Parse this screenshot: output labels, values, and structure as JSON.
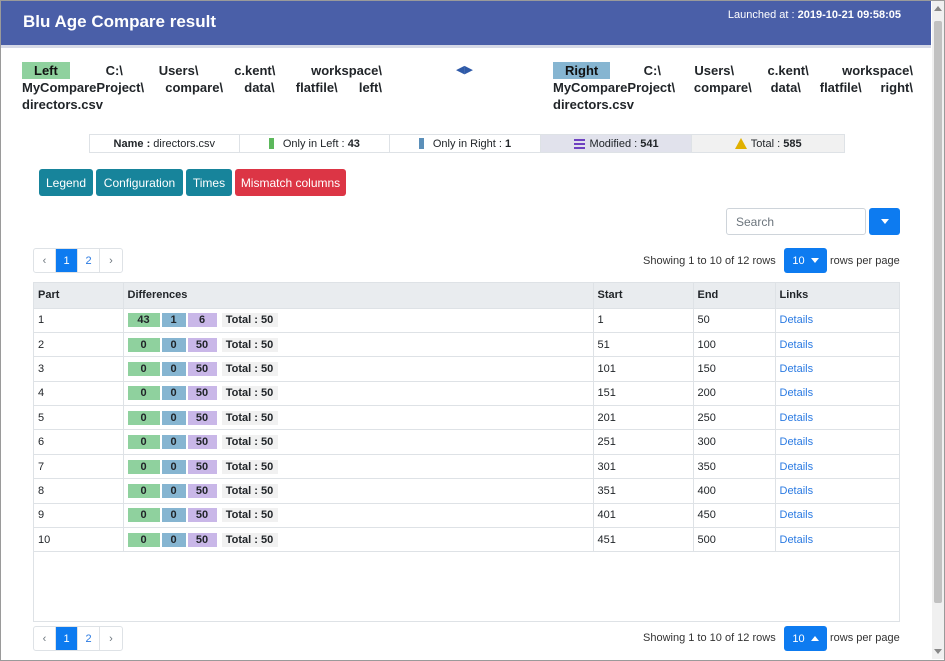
{
  "header": {
    "title": "Blu Age Compare result",
    "launched_label": "Launched at :",
    "launched_value": "2019-10-21 09:58:05"
  },
  "left": {
    "badge": "Left",
    "line1": [
      "C:\\",
      "Users\\",
      "c.kent\\",
      "workspace\\"
    ],
    "line2": [
      "MyCompareProject\\",
      "compare\\",
      "data\\",
      "flatfile\\",
      "left\\"
    ],
    "line3": "directors.csv"
  },
  "right": {
    "badge": "Right",
    "line1": [
      "C:\\",
      "Users\\",
      "c.kent\\",
      "workspace\\"
    ],
    "line2": [
      "MyCompareProject\\",
      "compare\\",
      "data\\",
      "flatfile\\",
      "right\\"
    ],
    "line3": "directors.csv"
  },
  "swap_icon": "◀▶",
  "summary": {
    "name_label": "Name :",
    "name_value": "directors.csv",
    "only_left_label": "Only in Left :",
    "only_left_value": "43",
    "only_right_label": "Only in Right :",
    "only_right_value": "1",
    "modified_label": "Modified :",
    "modified_value": "541",
    "total_label": "Total :",
    "total_value": "585"
  },
  "buttons": {
    "legend": "Legend",
    "configuration": "Configuration",
    "times": "Times",
    "mismatch": "Mismatch columns"
  },
  "search": {
    "placeholder": "Search"
  },
  "pagination": {
    "prev": "‹",
    "pages": [
      "1",
      "2"
    ],
    "next": "›",
    "showing": "Showing 1 to 10 of 12 rows",
    "rows_per_page_value": "10",
    "rows_per_page_label": "rows per page"
  },
  "table": {
    "columns": [
      "Part",
      "Differences",
      "Start",
      "End",
      "Links"
    ],
    "rows": [
      {
        "part": "1",
        "left": "43",
        "right": "1",
        "mod": "6",
        "total": "Total : 50",
        "start": "1",
        "end": "50",
        "link": "Details"
      },
      {
        "part": "2",
        "left": "0",
        "right": "0",
        "mod": "50",
        "total": "Total : 50",
        "start": "51",
        "end": "100",
        "link": "Details"
      },
      {
        "part": "3",
        "left": "0",
        "right": "0",
        "mod": "50",
        "total": "Total : 50",
        "start": "101",
        "end": "150",
        "link": "Details"
      },
      {
        "part": "4",
        "left": "0",
        "right": "0",
        "mod": "50",
        "total": "Total : 50",
        "start": "151",
        "end": "200",
        "link": "Details"
      },
      {
        "part": "5",
        "left": "0",
        "right": "0",
        "mod": "50",
        "total": "Total : 50",
        "start": "201",
        "end": "250",
        "link": "Details"
      },
      {
        "part": "6",
        "left": "0",
        "right": "0",
        "mod": "50",
        "total": "Total : 50",
        "start": "251",
        "end": "300",
        "link": "Details"
      },
      {
        "part": "7",
        "left": "0",
        "right": "0",
        "mod": "50",
        "total": "Total : 50",
        "start": "301",
        "end": "350",
        "link": "Details"
      },
      {
        "part": "8",
        "left": "0",
        "right": "0",
        "mod": "50",
        "total": "Total : 50",
        "start": "351",
        "end": "400",
        "link": "Details"
      },
      {
        "part": "9",
        "left": "0",
        "right": "0",
        "mod": "50",
        "total": "Total : 50",
        "start": "401",
        "end": "450",
        "link": "Details"
      },
      {
        "part": "10",
        "left": "0",
        "right": "0",
        "mod": "50",
        "total": "Total : 50",
        "start": "451",
        "end": "500",
        "link": "Details"
      }
    ]
  },
  "colors": {
    "header_bg": "#4a5fa8",
    "left_badge": "#8fd19e",
    "right_badge": "#86b5d1",
    "modified": "#c9b7e8",
    "primary": "#0d7bf0",
    "info": "#17849b",
    "danger": "#dc3545"
  }
}
